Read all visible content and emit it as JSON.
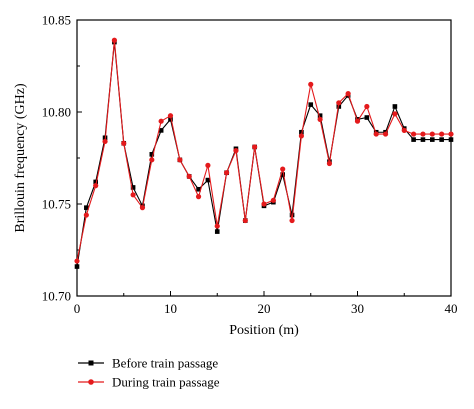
{
  "chart_data": {
    "type": "line",
    "xlabel": "Position (m)",
    "ylabel": "Brillouin frequency (GHz)",
    "xlim": [
      0,
      40
    ],
    "ylim": [
      10.7,
      10.85
    ],
    "xticks": [
      0,
      10,
      20,
      30,
      40
    ],
    "xtick_labels": [
      "0",
      "10",
      "20",
      "30",
      "40"
    ],
    "yticks": [
      10.7,
      10.75,
      10.8,
      10.85
    ],
    "ytick_labels": [
      "10.70",
      "10.75",
      "10.80",
      "10.85"
    ],
    "grid": false,
    "legend_position": "bottom-left",
    "x": [
      0,
      1,
      2,
      3,
      4,
      5,
      6,
      7,
      8,
      9,
      10,
      11,
      12,
      13,
      14,
      15,
      16,
      17,
      18,
      19,
      20,
      21,
      22,
      23,
      24,
      25,
      26,
      27,
      28,
      29,
      30,
      31,
      32,
      33,
      34,
      35,
      36,
      37,
      38,
      39,
      40
    ],
    "series": [
      {
        "name": "Before train passage",
        "color": "#000000",
        "marker": "square",
        "values": [
          10.716,
          10.748,
          10.762,
          10.786,
          10.838,
          10.783,
          10.759,
          10.749,
          10.777,
          10.79,
          10.796,
          10.774,
          10.765,
          10.758,
          10.763,
          10.735,
          10.767,
          10.78,
          10.741,
          10.781,
          10.749,
          10.751,
          10.766,
          10.744,
          10.789,
          10.804,
          10.798,
          10.773,
          10.803,
          10.809,
          10.796,
          10.797,
          10.789,
          10.789,
          10.803,
          10.791,
          10.785,
          10.785,
          10.785,
          10.785,
          10.785
        ]
      },
      {
        "name": "During train passage",
        "color": "#e41a1c",
        "marker": "circle",
        "values": [
          10.719,
          10.744,
          10.76,
          10.784,
          10.839,
          10.783,
          10.755,
          10.748,
          10.774,
          10.795,
          10.798,
          10.774,
          10.765,
          10.754,
          10.771,
          10.738,
          10.767,
          10.779,
          10.741,
          10.781,
          10.75,
          10.752,
          10.769,
          10.741,
          10.787,
          10.815,
          10.796,
          10.772,
          10.805,
          10.81,
          10.795,
          10.803,
          10.788,
          10.788,
          10.799,
          10.79,
          10.788,
          10.788,
          10.788,
          10.788,
          10.788
        ]
      }
    ]
  }
}
